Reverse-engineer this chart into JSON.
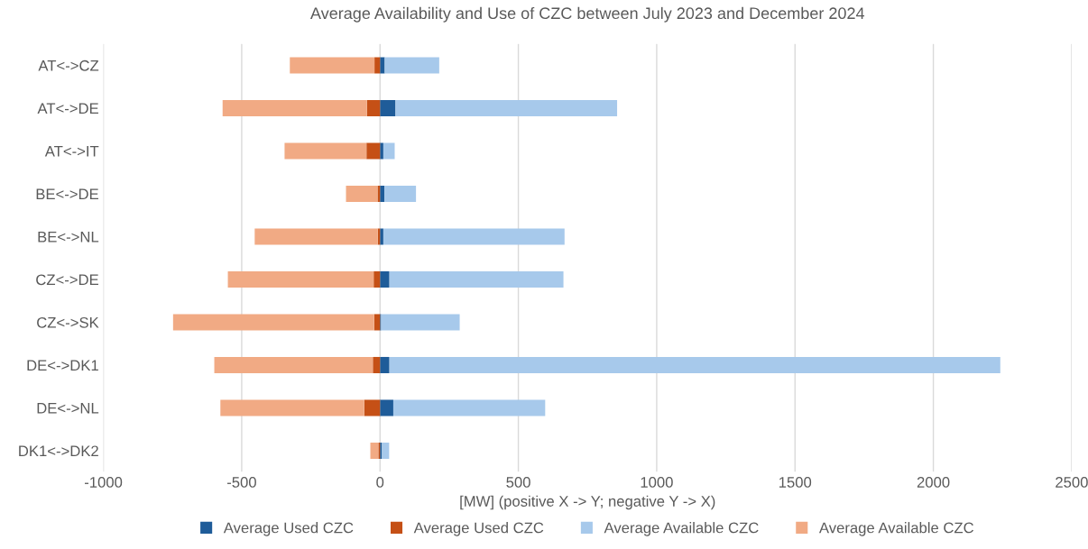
{
  "chart_data": {
    "type": "bar",
    "orientation": "horizontal",
    "stacked": true,
    "title": "Average Availability and Use of CZC between July 2023 and December 2024",
    "xlabel": "[MW] (positive X -> Y; negative Y -> X)",
    "categories": [
      "AT<->CZ",
      "AT<->DE",
      "AT<->IT",
      "BE<->DE",
      "BE<->NL",
      "CZ<->DE",
      "CZ<->SK",
      "DE<->DK1",
      "DE<->NL",
      "DK1<->DK2"
    ],
    "series": [
      {
        "name": "Average Used CZC",
        "color": "#1f5c99",
        "values": [
          17,
          56,
          12,
          16,
          12,
          34,
          4,
          34,
          48,
          7
        ]
      },
      {
        "name": "Average Used CZC",
        "color": "#c55016",
        "values": [
          -20,
          -47,
          -49,
          -9,
          -8,
          -23,
          -21,
          -26,
          -57,
          -6
        ]
      },
      {
        "name": "Average Available CZC",
        "color": "#a7c9eb",
        "values": [
          197,
          801,
          41,
          114,
          655,
          629,
          284,
          2208,
          549,
          26
        ]
      },
      {
        "name": "Average Available CZC",
        "color": "#f1aa84",
        "values": [
          -306,
          -522,
          -296,
          -114,
          -445,
          -527,
          -727,
          -573,
          -520,
          -29
        ]
      }
    ],
    "xlim": [
      -1000,
      2500
    ],
    "xticks": [
      -1000,
      -500,
      0,
      500,
      1000,
      1500,
      2000,
      2500
    ],
    "grid": "x",
    "legend": "bottom"
  }
}
